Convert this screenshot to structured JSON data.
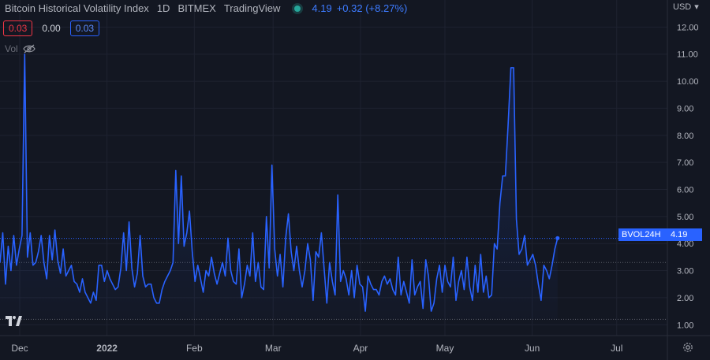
{
  "header": {
    "symbol_name": "Bitcoin Historical Volatility Index",
    "interval": "1D",
    "exchange": "BITMEX",
    "source": "TradingView",
    "last_price": "4.19",
    "change": "+0.32 (+8.27%)"
  },
  "ohlc_boxes": {
    "left": "0.03",
    "middle": "0.00",
    "right": "0.03"
  },
  "volume_label": "Vol",
  "axis": {
    "currency": "USD",
    "currency_arrow": "▾"
  },
  "price_tag": {
    "name": "BVOL24H",
    "value": "4.19"
  },
  "colors": {
    "line": "#2962ff",
    "background": "#131722",
    "up": "#26a69a",
    "down": "#f23645"
  },
  "chart_data": {
    "type": "line",
    "title": "",
    "y_ticks": [
      "1.00",
      "2.00",
      "3.00",
      "4.00",
      "5.00",
      "6.00",
      "7.00",
      "8.00",
      "9.00",
      "10.00",
      "11.00",
      "12.00"
    ],
    "ylim": [
      0.6,
      13.0
    ],
    "x_tick_labels": [
      "Dec",
      "2022",
      "Feb",
      "Mar",
      "Apr",
      "May",
      "Jun",
      "Jul"
    ],
    "x_tick_days": [
      16,
      47,
      78,
      106,
      137,
      167,
      198,
      228
    ],
    "xlim": [
      9,
      246
    ],
    "reference_lines": [
      4.19,
      3.3,
      1.2
    ],
    "series": [
      {
        "values": [
          3.3,
          4.4,
          2.5,
          3.9,
          3.0,
          4.3,
          3.2,
          3.8,
          4.3,
          11.0,
          3.5,
          4.4,
          3.2,
          3.3,
          3.7,
          4.3,
          3.3,
          2.7,
          4.3,
          3.4,
          4.5,
          3.4,
          2.9,
          3.8,
          2.8,
          3.0,
          3.2,
          2.6,
          2.5,
          2.2,
          2.7,
          2.2,
          2.0,
          1.8,
          2.2,
          1.9,
          3.2,
          3.2,
          2.6,
          3.0,
          2.7,
          2.5,
          2.3,
          2.4,
          3.1,
          4.4,
          3.0,
          4.8,
          3.1,
          2.4,
          2.9,
          4.3,
          2.8,
          2.4,
          2.5,
          2.5,
          2.0,
          1.8,
          1.8,
          2.3,
          2.6,
          2.8,
          3.0,
          3.3,
          6.7,
          4.0,
          6.5,
          3.9,
          4.4,
          5.2,
          3.7,
          2.6,
          3.2,
          2.7,
          2.2,
          3.0,
          2.8,
          3.5,
          2.9,
          2.5,
          2.9,
          3.3,
          2.8,
          4.2,
          3.0,
          2.6,
          2.5,
          3.8,
          2.0,
          2.5,
          3.2,
          2.8,
          4.4,
          2.6,
          3.3,
          2.4,
          2.3,
          5.0,
          3.1,
          6.9,
          3.8,
          2.8,
          3.6,
          2.4,
          4.2,
          5.1,
          3.7,
          3.0,
          3.9,
          3.0,
          2.4,
          3.0,
          4.0,
          3.4,
          1.9,
          3.7,
          3.5,
          4.4,
          3.1,
          1.8,
          3.3,
          2.6,
          2.1,
          5.8,
          2.6,
          3.0,
          2.7,
          2.1,
          3.0,
          2.0,
          3.2,
          2.5,
          2.4,
          1.5,
          2.8,
          2.5,
          2.3,
          2.3,
          2.1,
          2.6,
          2.8,
          2.5,
          2.7,
          2.3,
          2.1,
          3.5,
          2.1,
          2.6,
          2.2,
          1.8,
          3.4,
          2.1,
          2.4,
          2.6,
          1.6,
          3.4,
          2.8,
          1.5,
          1.8,
          2.7,
          3.2,
          2.2,
          3.2,
          2.6,
          2.4,
          3.5,
          1.9,
          2.6,
          3.0,
          2.3,
          3.5,
          2.4,
          1.9,
          3.2,
          2.2,
          3.6,
          2.2,
          2.8,
          2.0,
          2.1,
          4.0,
          3.8,
          5.5,
          6.5,
          6.5,
          8.4,
          10.5,
          10.5,
          4.9,
          3.6,
          3.8,
          4.3,
          3.2,
          3.4,
          3.6,
          3.2,
          2.5,
          1.9,
          3.2,
          3.0,
          2.7,
          3.2,
          3.8,
          4.2
        ]
      }
    ]
  }
}
